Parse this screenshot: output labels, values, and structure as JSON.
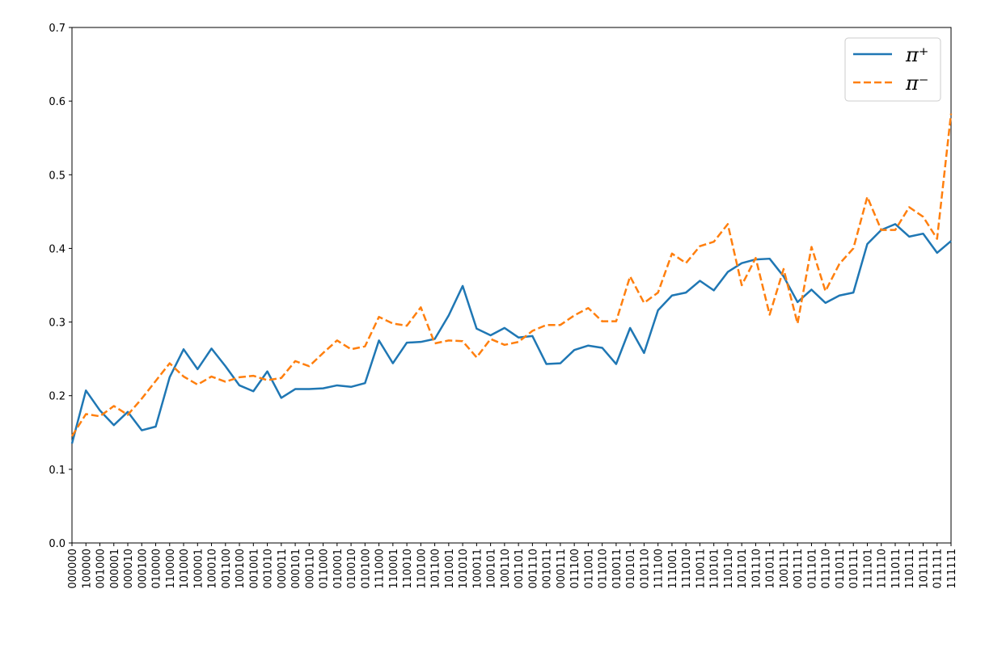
{
  "chart_data": {
    "type": "line",
    "categories": [
      "000000",
      "100000",
      "001000",
      "000001",
      "000010",
      "000100",
      "010000",
      "110000",
      "101000",
      "100001",
      "100010",
      "001100",
      "100100",
      "001001",
      "001010",
      "000011",
      "000101",
      "000110",
      "011000",
      "010001",
      "010010",
      "010100",
      "111000",
      "110001",
      "110010",
      "110100",
      "101100",
      "101001",
      "101010",
      "100011",
      "100101",
      "100110",
      "001101",
      "001110",
      "001011",
      "000111",
      "011100",
      "011001",
      "011010",
      "010011",
      "010101",
      "010110",
      "111100",
      "111001",
      "111010",
      "110011",
      "110101",
      "110110",
      "101101",
      "101110",
      "101011",
      "100111",
      "001111",
      "011101",
      "011110",
      "011011",
      "010111",
      "111101",
      "111110",
      "111011",
      "110111",
      "101111",
      "011111",
      "111111"
    ],
    "series": [
      {
        "name": "π⁺",
        "color": "#1f77b4",
        "dash": false,
        "values": [
          0.135,
          0.207,
          0.18,
          0.16,
          0.178,
          0.153,
          0.158,
          0.225,
          0.263,
          0.236,
          0.264,
          0.24,
          0.214,
          0.206,
          0.233,
          0.197,
          0.209,
          0.209,
          0.21,
          0.214,
          0.212,
          0.217,
          0.275,
          0.244,
          0.272,
          0.273,
          0.277,
          0.309,
          0.349,
          0.291,
          0.282,
          0.292,
          0.279,
          0.281,
          0.243,
          0.244,
          0.262,
          0.268,
          0.265,
          0.243,
          0.292,
          0.258,
          0.316,
          0.336,
          0.34,
          0.356,
          0.343,
          0.368,
          0.38,
          0.385,
          0.386,
          0.362,
          0.327,
          0.344,
          0.326,
          0.336,
          0.34,
          0.406,
          0.425,
          0.433,
          0.416,
          0.42,
          0.394,
          0.41
        ]
      },
      {
        "name": "π⁻",
        "color": "#ff7f0e",
        "dash": true,
        "values": [
          0.145,
          0.175,
          0.172,
          0.186,
          0.174,
          0.196,
          0.22,
          0.244,
          0.226,
          0.215,
          0.226,
          0.219,
          0.225,
          0.227,
          0.221,
          0.224,
          0.247,
          0.24,
          0.258,
          0.275,
          0.263,
          0.267,
          0.307,
          0.298,
          0.295,
          0.32,
          0.271,
          0.275,
          0.274,
          0.252,
          0.277,
          0.269,
          0.273,
          0.288,
          0.296,
          0.296,
          0.309,
          0.319,
          0.301,
          0.301,
          0.362,
          0.326,
          0.34,
          0.393,
          0.38,
          0.403,
          0.409,
          0.433,
          0.35,
          0.387,
          0.31,
          0.372,
          0.298,
          0.402,
          0.342,
          0.379,
          0.4,
          0.47,
          0.425,
          0.425,
          0.456,
          0.443,
          0.413,
          0.583
        ]
      }
    ],
    "ylim": [
      0,
      0.7
    ],
    "yticks": [
      {
        "value": 0,
        "label": "0.0"
      },
      0.1,
      0.2,
      0.3,
      0.4,
      0.5,
      0.6,
      0.7
    ],
    "grid": false,
    "legend": "upper right"
  }
}
